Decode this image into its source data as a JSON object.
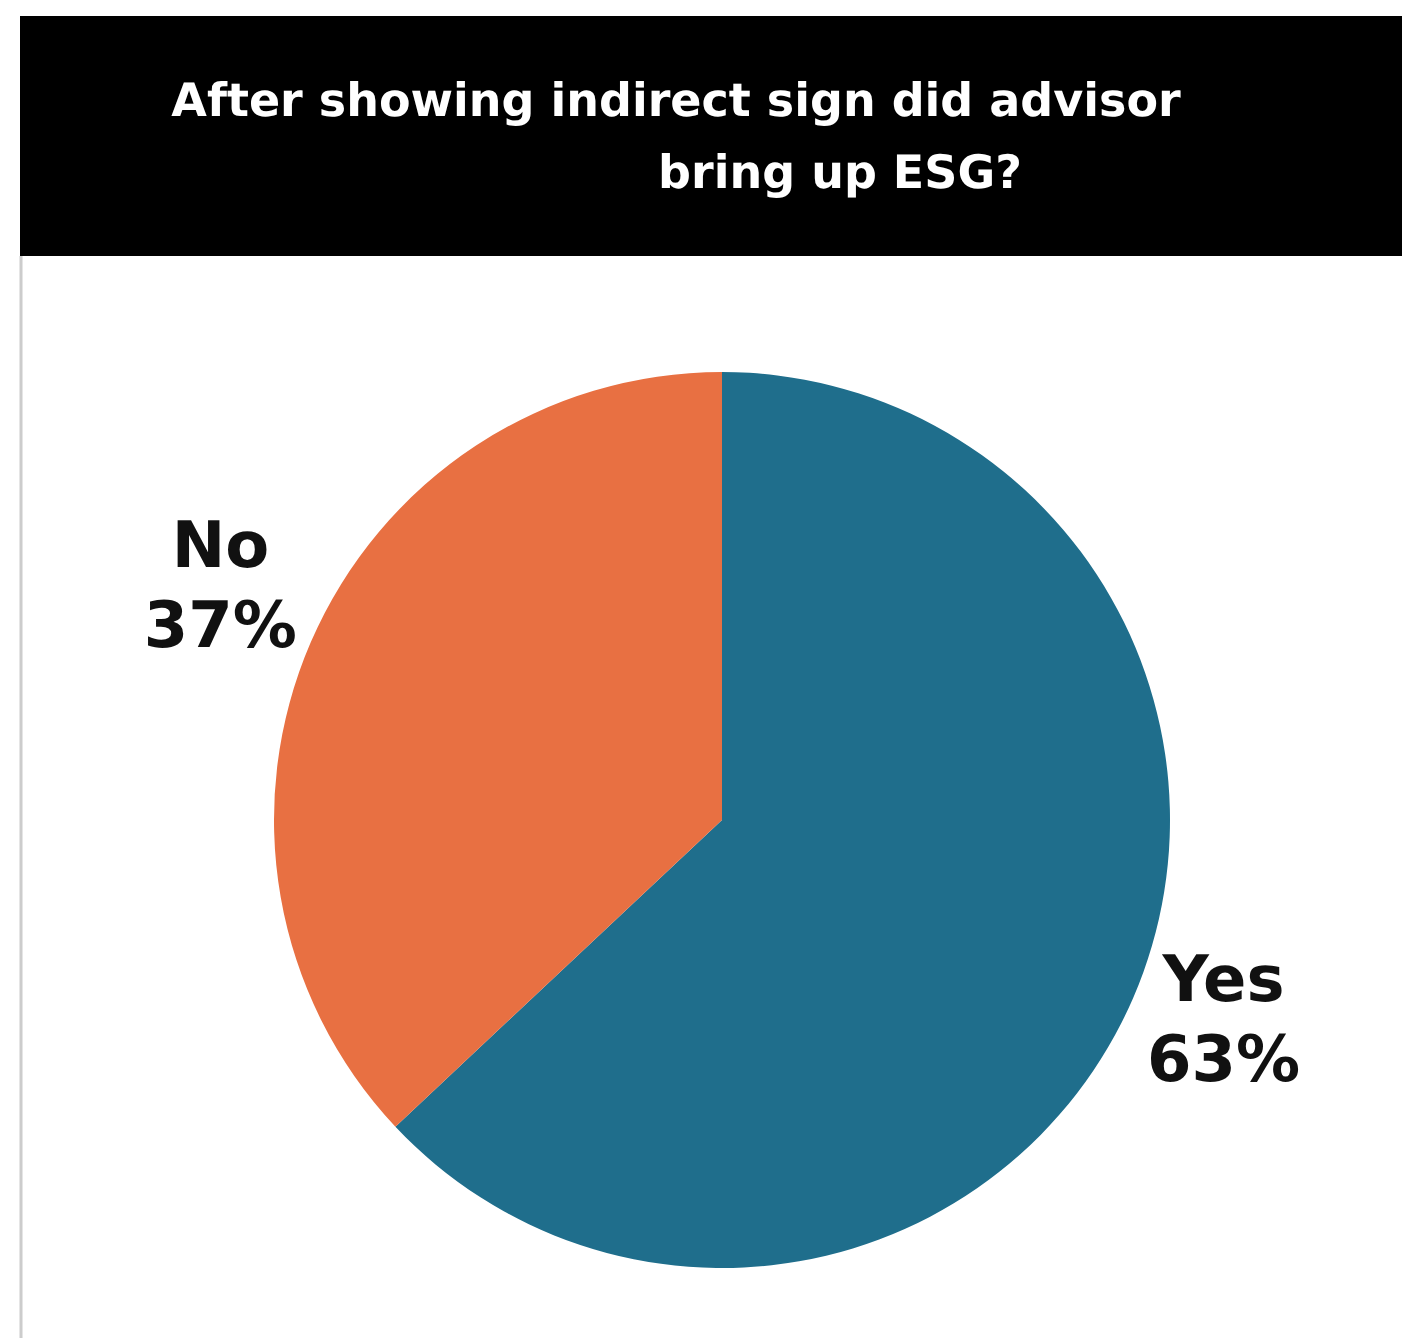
{
  "chart_data": {
    "type": "pie",
    "title": "After showing indirect sign did advisor bring up ESG?",
    "categories": [
      "Yes",
      "No"
    ],
    "values": [
      63,
      37
    ],
    "colors": [
      "#1f6e8c",
      "#e87042"
    ],
    "value_labels": [
      "63%",
      "37%"
    ],
    "legend": false
  }
}
